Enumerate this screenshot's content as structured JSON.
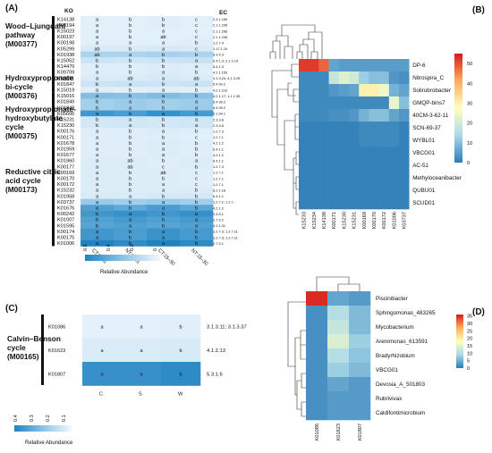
{
  "colors": {
    "seq_low": "#f2f8fd",
    "seq_mid": "#8cc3e6",
    "seq_high": "#1f82c1",
    "hm_blue": "#2c7bb6",
    "hm_light": "#abd9e9",
    "hm_yellow": "#ffffbf",
    "hm_orange": "#fdae61",
    "hm_red": "#d7191c"
  },
  "panelA": {
    "label": "(A)",
    "col_header_ko": "KO",
    "col_header_ec": "EC",
    "columns": [
      "CT:0–15",
      "NT:0–15",
      "CT:15–30",
      "NT:15–30"
    ],
    "legend_title": "Relative Abundance",
    "legend_ticks": [
      "0.6",
      "0.4",
      "0.2",
      "0"
    ],
    "pathways": [
      {
        "label": "Wood–Ljungdahl pathway (M00377)",
        "lines": [
          "Wood–Ljungdahl",
          "pathway",
          "(M00377)"
        ]
      },
      {
        "label": "Hydroxypropionate bi-cycle (M00376)",
        "lines": [
          "Hydroxypropionate",
          "bi-cycle",
          "(M00376)"
        ]
      },
      {
        "label": "Hydroxypropionate-hydroxybutylate cycle (M00375)",
        "lines": [
          "Hydroxypropionate-",
          "hydroxybutylate",
          "cycle",
          "(M00375)"
        ]
      },
      {
        "label": "Reductive citric acid cycle (M00173)",
        "lines": [
          "Reductive citric",
          "acid cycle",
          "(M00173)"
        ]
      }
    ],
    "rows": [
      {
        "ko": "K14138",
        "letters": [
          "a",
          "b",
          "b",
          "c"
        ],
        "ec": "2.3.1.169",
        "v": [
          0.05,
          0.05,
          0.06,
          0.05
        ]
      },
      {
        "ko": "K00194",
        "letters": [
          "a",
          "b",
          "b",
          "c"
        ],
        "ec": "2.1.1.245",
        "v": [
          0.05,
          0.05,
          0.06,
          0.05
        ]
      },
      {
        "ko": "K15023",
        "letters": [
          "a",
          "b",
          "a",
          "c"
        ],
        "ec": "2.1.1.258",
        "v": [
          0.05,
          0.04,
          0.05,
          0.04
        ]
      },
      {
        "ko": "K00197",
        "letters": [
          "a",
          "b",
          "ab",
          "c"
        ],
        "ec": "2.1.1.245",
        "v": [
          0.05,
          0.05,
          0.05,
          0.05
        ]
      },
      {
        "ko": "K00198",
        "letters": [
          "a",
          "a",
          "a",
          "b"
        ],
        "ec": "1.2.7.4",
        "v": [
          0.05,
          0.05,
          0.05,
          0.06
        ]
      },
      {
        "ko": "K05299",
        "letters": [
          "ab",
          "b",
          "a",
          "c"
        ],
        "ec": "1.17.1.10",
        "v": [
          0.08,
          0.08,
          0.09,
          0.08
        ]
      },
      {
        "ko": "K01938",
        "letters": [
          "ab",
          "a",
          "b",
          "b"
        ],
        "ec": "6.3.4.3",
        "v": [
          0.22,
          0.22,
          0.24,
          0.22
        ]
      },
      {
        "ko": "K15052",
        "letters": [
          "b",
          "b",
          "b",
          "a"
        ],
        "ec": "6.4.1.3; 2.1.3.15",
        "v": [
          0.12,
          0.11,
          0.12,
          0.13
        ]
      },
      {
        "ko": "K14470",
        "letters": [
          "b",
          "b",
          "b",
          "a"
        ],
        "ec": "5.4.1.3",
        "v": [
          0.06,
          0.06,
          0.07,
          0.07
        ]
      },
      {
        "ko": "K09709",
        "letters": [
          "a",
          "b",
          "a",
          "b"
        ],
        "ec": "4.2.1.153",
        "v": [
          0.06,
          0.06,
          0.07,
          0.06
        ]
      },
      {
        "ko": "K08691",
        "letters": [
          "a",
          "ab",
          "a",
          "ab"
        ],
        "ec": "4.1.3.24; 4.1.3.25",
        "v": [
          0.08,
          0.08,
          0.09,
          0.08
        ]
      },
      {
        "ko": "K01847",
        "letters": [
          "b",
          "a",
          "b",
          "a"
        ],
        "ec": "5.4.99.2",
        "v": [
          0.12,
          0.13,
          0.12,
          0.13
        ]
      },
      {
        "ko": "K15019",
        "letters": [
          "a",
          "b",
          "a",
          "b"
        ],
        "ec": "4.2.1.116",
        "v": [
          0.06,
          0.05,
          0.06,
          0.05
        ]
      },
      {
        "ko": "K15016",
        "letters": [
          "a",
          "b",
          "a",
          "b"
        ],
        "ec": "4.2.1.17; 1.1.1.35",
        "v": [
          0.35,
          0.33,
          0.36,
          0.33
        ]
      },
      {
        "ko": "K01849",
        "letters": [
          "b",
          "a",
          "b",
          "a"
        ],
        "ec": "5.4.99.2",
        "v": [
          0.25,
          0.27,
          0.25,
          0.27
        ]
      },
      {
        "ko": "K01848",
        "letters": [
          "b",
          "a",
          "b",
          "a"
        ],
        "ec": "5.4.99.2",
        "v": [
          0.25,
          0.27,
          0.25,
          0.27
        ]
      },
      {
        "ko": "K05606",
        "letters": [
          "a",
          "b",
          "a",
          "b"
        ],
        "ec": "5.1.99.1",
        "v": [
          0.55,
          0.52,
          0.58,
          0.53
        ]
      },
      {
        "ko": "K15231",
        "letters": [
          "b",
          "a",
          "b",
          "a"
        ],
        "ec": "2.3.3.8",
        "v": [
          0.1,
          0.11,
          0.1,
          0.11
        ]
      },
      {
        "ko": "K15230",
        "letters": [
          "b",
          "a",
          "b",
          "a"
        ],
        "ec": "2.3.3.8",
        "v": [
          0.1,
          0.11,
          0.1,
          0.11
        ]
      },
      {
        "ko": "K00176",
        "letters": [
          "a",
          "b",
          "a",
          "b"
        ],
        "ec": "1.2.7.3",
        "v": [
          0.06,
          0.06,
          0.07,
          0.06
        ]
      },
      {
        "ko": "K00171",
        "letters": [
          "a",
          "b",
          "b",
          "c"
        ],
        "ec": "1.2.7.1",
        "v": [
          0.06,
          0.06,
          0.06,
          0.05
        ]
      },
      {
        "ko": "K01678",
        "letters": [
          "a",
          "b",
          "a",
          "b"
        ],
        "ec": "4.2.1.2",
        "v": [
          0.06,
          0.06,
          0.07,
          0.06
        ]
      },
      {
        "ko": "K01959",
        "letters": [
          "a",
          "b",
          "a",
          "b"
        ],
        "ec": "6.4.1.1",
        "v": [
          0.06,
          0.06,
          0.07,
          0.06
        ]
      },
      {
        "ko": "K01677",
        "letters": [
          "a",
          "b",
          "a",
          "b"
        ],
        "ec": "4.2.1.2",
        "v": [
          0.06,
          0.06,
          0.07,
          0.06
        ]
      },
      {
        "ko": "K01960",
        "letters": [
          "a",
          "ab",
          "b",
          "a"
        ],
        "ec": "6.4.1.1",
        "v": [
          0.07,
          0.07,
          0.06,
          0.07
        ]
      },
      {
        "ko": "K00177",
        "letters": [
          "a",
          "ab",
          "c",
          "b"
        ],
        "ec": "1.2.7.3",
        "v": [
          0.07,
          0.07,
          0.06,
          0.07
        ]
      },
      {
        "ko": "K00169",
        "letters": [
          "a",
          "b",
          "ab",
          "c"
        ],
        "ec": "1.2.7.1",
        "v": [
          0.07,
          0.07,
          0.07,
          0.06
        ]
      },
      {
        "ko": "K00170",
        "letters": [
          "a",
          "b",
          "b",
          "c"
        ],
        "ec": "1.2.7.1",
        "v": [
          0.07,
          0.07,
          0.07,
          0.06
        ]
      },
      {
        "ko": "K00172",
        "letters": [
          "a",
          "b",
          "a",
          "c"
        ],
        "ec": "1.2.7.1",
        "v": [
          0.07,
          0.07,
          0.07,
          0.06
        ]
      },
      {
        "ko": "K15232",
        "letters": [
          "a",
          "b",
          "a",
          "b"
        ],
        "ec": "6.2.1.18",
        "v": [
          0.07,
          0.07,
          0.07,
          0.07
        ]
      },
      {
        "ko": "K01958",
        "letters": [
          "a",
          "a",
          "b",
          "b"
        ],
        "ec": "6.4.1.1",
        "v": [
          0.08,
          0.08,
          0.09,
          0.09
        ]
      },
      {
        "ko": "K03737",
        "letters": [
          "a",
          "b",
          "a",
          "b"
        ],
        "ec": "1.2.7.1; 1.2.7.-",
        "v": [
          0.28,
          0.26,
          0.28,
          0.26
        ]
      },
      {
        "ko": "K01676",
        "letters": [
          "a",
          "b",
          "a",
          "b"
        ],
        "ec": "4.2.1.2",
        "v": [
          0.5,
          0.46,
          0.52,
          0.47
        ]
      },
      {
        "ko": "K00242",
        "letters": [
          "b",
          "a",
          "b",
          "a"
        ],
        "ec": "1.3.5.1",
        "v": [
          0.55,
          0.58,
          0.55,
          0.58
        ]
      },
      {
        "ko": "K01007",
        "letters": [
          "b",
          "a",
          "b",
          "a"
        ],
        "ec": "2.7.9.2",
        "v": [
          0.5,
          0.53,
          0.5,
          0.53
        ]
      },
      {
        "ko": "K01595",
        "letters": [
          "b",
          "a",
          "b",
          "a"
        ],
        "ec": "4.1.1.31",
        "v": [
          0.48,
          0.5,
          0.48,
          0.5
        ]
      },
      {
        "ko": "K00174",
        "letters": [
          "a",
          "b",
          "a",
          "b"
        ],
        "ec": "1.2.7.3; 1.2.7.11",
        "v": [
          0.55,
          0.52,
          0.57,
          0.53
        ]
      },
      {
        "ko": "K00175",
        "letters": [
          "a",
          "b",
          "a",
          "b"
        ],
        "ec": "1.2.7.3; 1.2.7.11",
        "v": [
          0.55,
          0.52,
          0.57,
          0.53
        ]
      },
      {
        "ko": "K01006",
        "letters": [
          "a",
          "b",
          "a",
          "b"
        ],
        "ec": "2.7.9.1",
        "v": [
          0.65,
          0.6,
          0.66,
          0.61
        ]
      }
    ]
  },
  "panelB": {
    "label": "(B)",
    "rows": [
      "DP-6",
      "Nitrospira_C",
      "Solirubrobacter",
      "GMQP-bins7",
      "40CM-3-62-11",
      "SCN-69-37",
      "WYBL01",
      "VBCG01",
      "AC-51",
      "Methyloceanibacter",
      "QUBU01",
      "SCUD01"
    ],
    "cols": [
      "K15233",
      "K15234",
      "K14138",
      "K00171",
      "K15230",
      "K15231",
      "K00169",
      "K00170",
      "K00172",
      "K01006",
      "K03737"
    ],
    "legend_ticks": [
      "50",
      "40",
      "30",
      "20",
      "10",
      "0"
    ],
    "chart_data": {
      "type": "heatmap",
      "x": [
        "K15233",
        "K15234",
        "K14138",
        "K00171",
        "K15230",
        "K15231",
        "K00169",
        "K00170",
        "K00172",
        "K01006",
        "K03737"
      ],
      "y": [
        "DP-6",
        "Nitrospira_C",
        "Solirubrobacter",
        "GMQP-bins7",
        "40CM-3-62-11",
        "SCN-69-37",
        "WYBL01",
        "VBCG01",
        "AC-51",
        "Methyloceanibacter",
        "QUBU01",
        "SCUD01"
      ],
      "zlim": [
        0,
        55
      ],
      "values": [
        [
          52,
          52,
          48,
          6,
          5,
          5,
          5,
          5,
          5,
          5,
          5
        ],
        [
          2,
          2,
          2,
          18,
          22,
          20,
          12,
          10,
          10,
          4,
          3
        ],
        [
          2,
          2,
          2,
          4,
          5,
          6,
          30,
          30,
          25,
          8,
          6
        ],
        [
          2,
          2,
          2,
          2,
          2,
          2,
          2,
          2,
          2,
          24,
          10
        ],
        [
          2,
          2,
          2,
          3,
          3,
          4,
          8,
          10,
          10,
          6,
          4
        ],
        [
          1,
          1,
          1,
          1,
          1,
          1,
          2,
          2,
          2,
          2,
          1
        ],
        [
          1,
          1,
          1,
          1,
          1,
          1,
          2,
          2,
          2,
          2,
          1
        ],
        [
          1,
          1,
          1,
          1,
          1,
          1,
          1,
          1,
          1,
          1,
          1
        ],
        [
          1,
          1,
          1,
          1,
          1,
          1,
          1,
          1,
          1,
          1,
          1
        ],
        [
          1,
          1,
          1,
          1,
          1,
          1,
          1,
          1,
          1,
          1,
          1
        ],
        [
          1,
          1,
          1,
          1,
          1,
          1,
          1,
          1,
          1,
          1,
          1
        ],
        [
          1,
          1,
          1,
          1,
          1,
          1,
          1,
          1,
          1,
          1,
          1
        ]
      ]
    }
  },
  "panelC": {
    "label": "(C)",
    "pathway_lines": [
      "Calvin–Benson",
      "cycle",
      "(M00165)"
    ],
    "columns": [
      "C",
      "S",
      "W"
    ],
    "legend_title": "Relative Abundance",
    "legend_ticks": [
      "0.4",
      "0.3",
      "0.2",
      "0.1"
    ],
    "rows": [
      {
        "ko": "K01086",
        "letters": [
          "a",
          "a",
          "b"
        ],
        "ec": "3.1.3.11; 3.1.3.37",
        "v": [
          0.03,
          0.03,
          0.04
        ]
      },
      {
        "ko": "K01623",
        "letters": [
          "a",
          "a",
          "b"
        ],
        "ec": "4.1.2.13",
        "v": [
          0.05,
          0.05,
          0.06
        ]
      },
      {
        "ko": "K01807",
        "letters": [
          "a",
          "a",
          "b"
        ],
        "ec": "5.3.1.6",
        "v": [
          0.4,
          0.4,
          0.42
        ]
      }
    ]
  },
  "panelD": {
    "label": "(D)",
    "rows": [
      "Piscinibacter",
      "Sphingomonas_483265",
      "Mycobacterium",
      "Arenimonas_613591",
      "Bradyrhizobium",
      "VBCG01",
      "Devosia_A_501803",
      "Rubrivivax",
      "Caldifontimicrobium"
    ],
    "cols": [
      "K01086",
      "K01623",
      "K01807"
    ],
    "legend_ticks": [
      "35",
      "30",
      "25",
      "20",
      "15",
      "10",
      "5",
      "0"
    ],
    "chart_data": {
      "type": "heatmap",
      "x": [
        "K01086",
        "K01623",
        "K01807"
      ],
      "y": [
        "Piscinibacter",
        "Sphingomonas_483265",
        "Mycobacterium",
        "Arenimonas_613591",
        "Bradyrhizobium",
        "VBCG01",
        "Devosia_A_501803",
        "Rubrivivax",
        "Caldifontimicrobium"
      ],
      "zlim": [
        0,
        36
      ],
      "values": [
        [
          35,
          4,
          3
        ],
        [
          2,
          10,
          6
        ],
        [
          2,
          12,
          6
        ],
        [
          2,
          14,
          8
        ],
        [
          2,
          10,
          7
        ],
        [
          2,
          8,
          6
        ],
        [
          2,
          4,
          3
        ],
        [
          2,
          3,
          3
        ],
        [
          2,
          3,
          3
        ]
      ]
    }
  }
}
